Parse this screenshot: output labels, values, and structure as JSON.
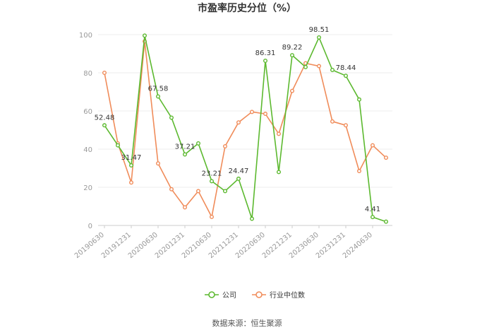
{
  "chart_data": {
    "type": "line",
    "title": "市盈率历史分位（%）",
    "xlabel": "",
    "ylabel": "",
    "ylim": [
      0,
      100
    ],
    "yticks": [
      0,
      20,
      40,
      60,
      80,
      100
    ],
    "grid": true,
    "legend_position": "bottom",
    "categories": [
      "20190630",
      "20190930",
      "20191231",
      "20200331",
      "20200630",
      "20200930",
      "20201231",
      "20210331",
      "20210630",
      "20210930",
      "20211231",
      "20220331",
      "20220630",
      "20220930",
      "20221231",
      "20230331",
      "20230630",
      "20230930",
      "20231231",
      "20240331",
      "20240630",
      "20240930"
    ],
    "xtick_labels": [
      "20190630",
      "20191231",
      "20200630",
      "20201231",
      "20210630",
      "20211231",
      "20220630",
      "20221231",
      "20230630",
      "20231231",
      "20240630"
    ],
    "series": [
      {
        "name": "公司",
        "color": "#5cb92f",
        "values": [
          52.48,
          42.0,
          31.47,
          99.5,
          67.58,
          56.5,
          37.21,
          43.0,
          23.21,
          18.0,
          24.47,
          3.5,
          86.31,
          28.0,
          89.22,
          83.0,
          98.51,
          81.5,
          78.44,
          66.0,
          4.41,
          2.0
        ],
        "labeled_indices": [
          0,
          2,
          4,
          6,
          8,
          10,
          12,
          14,
          16,
          18,
          20
        ]
      },
      {
        "name": "行业中位数",
        "color": "#f08c5a",
        "values": [
          80.0,
          43.0,
          22.5,
          96.5,
          32.5,
          19.0,
          9.5,
          18.0,
          4.5,
          41.5,
          54.0,
          59.5,
          58.5,
          48.0,
          70.5,
          85.0,
          83.5,
          54.5,
          52.5,
          28.5,
          42.0,
          35.5
        ]
      }
    ]
  },
  "source_text": "数据来源：恒生聚源"
}
